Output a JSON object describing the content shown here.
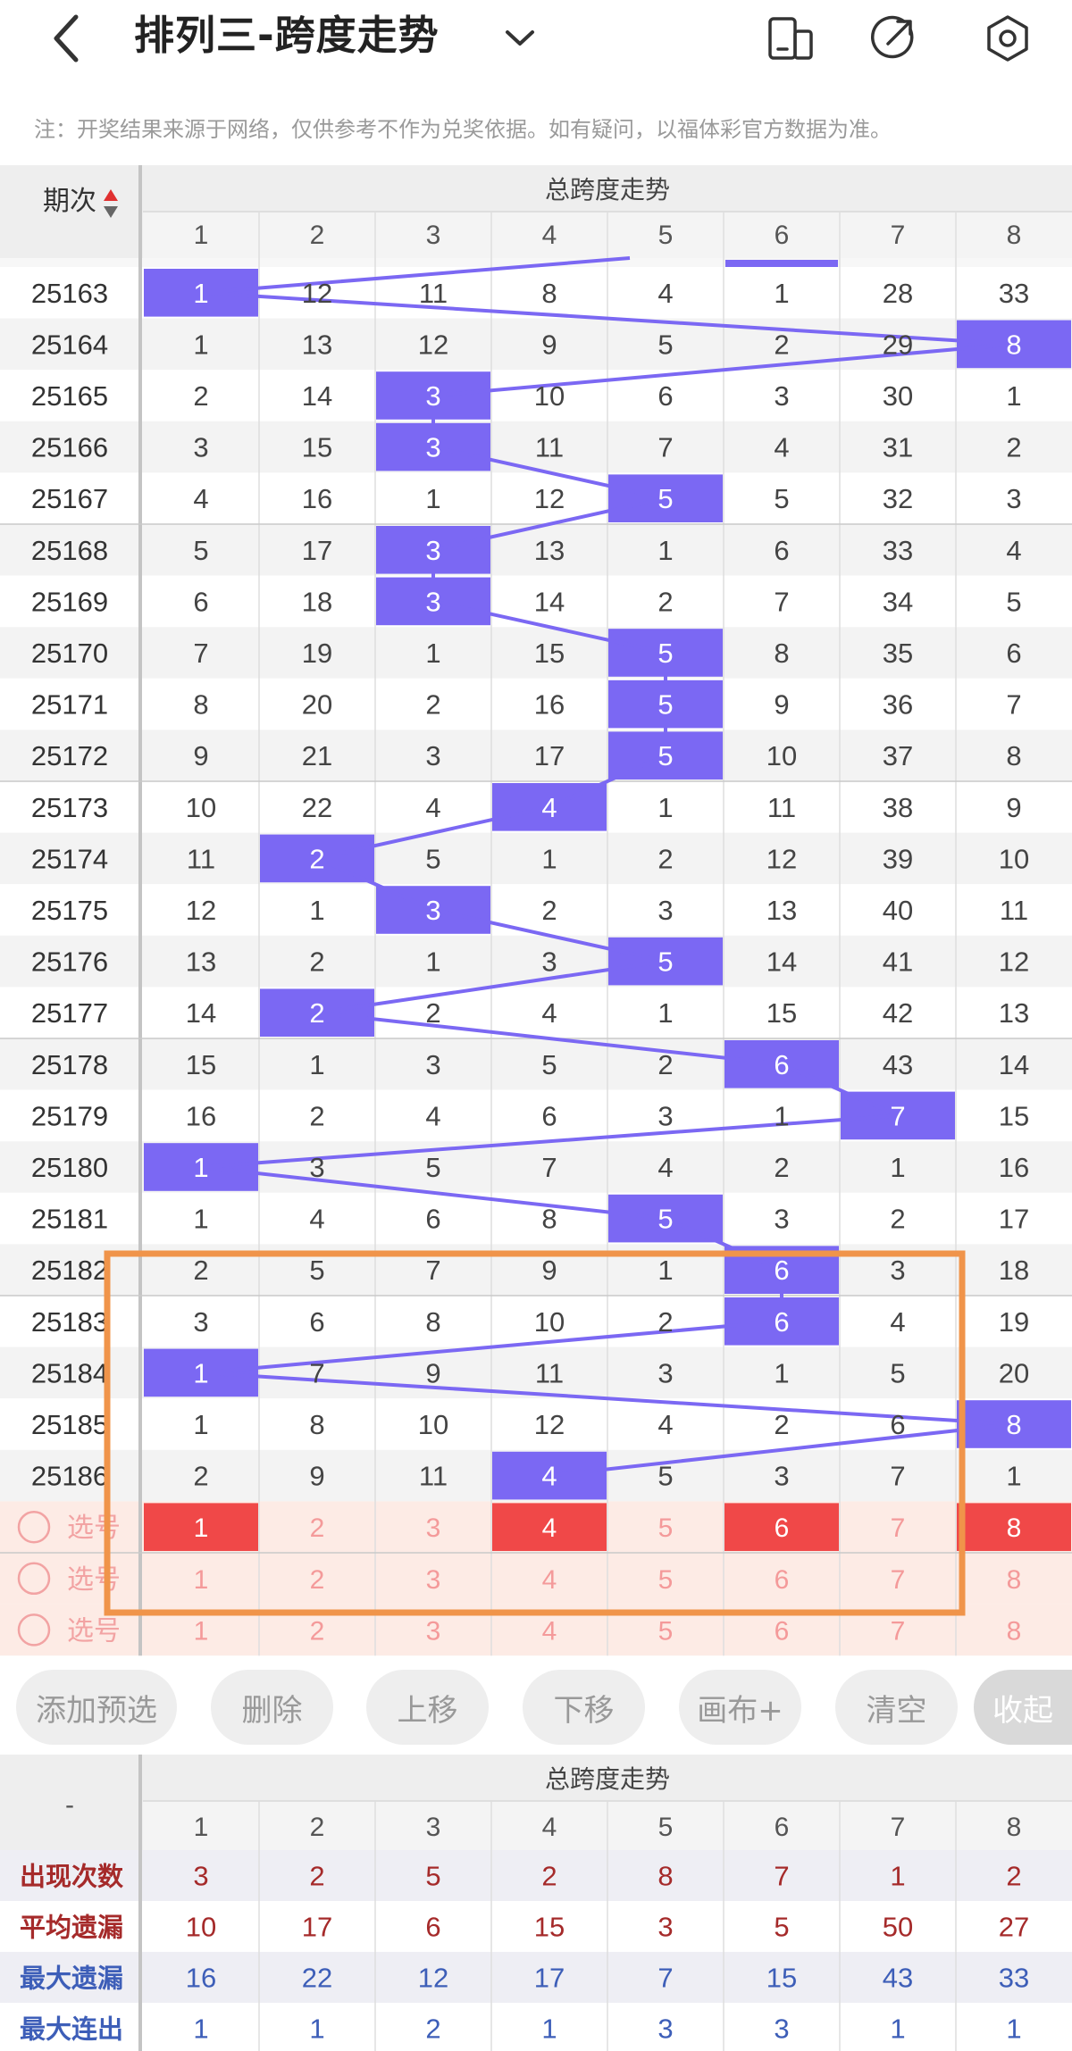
{
  "header": {
    "title": "排列三-跨度走势",
    "icons": [
      "back-arrow-icon",
      "chevron-down-icon",
      "phone-layout-icon",
      "share-icon",
      "settings-icon"
    ]
  },
  "notice": "注：开奖结果来源于网络，仅供参考不作为兑奖依据。如有疑问，以福体彩官方数据为准。",
  "table": {
    "period_header": "期次",
    "group_header": "总跨度走势",
    "columns": [
      "1",
      "2",
      "3",
      "4",
      "5",
      "6",
      "7",
      "8"
    ],
    "rows": [
      {
        "period": "25163",
        "values": [
          "1",
          "12",
          "11",
          "8",
          "4",
          "1",
          "28",
          "33"
        ],
        "hit": 0
      },
      {
        "period": "25164",
        "values": [
          "1",
          "13",
          "12",
          "9",
          "5",
          "2",
          "29",
          "8"
        ],
        "hit": 7
      },
      {
        "period": "25165",
        "values": [
          "2",
          "14",
          "3",
          "10",
          "6",
          "3",
          "30",
          "1"
        ],
        "hit": 2
      },
      {
        "period": "25166",
        "values": [
          "3",
          "15",
          "3",
          "11",
          "7",
          "4",
          "31",
          "2"
        ],
        "hit": 2
      },
      {
        "period": "25167",
        "values": [
          "4",
          "16",
          "1",
          "12",
          "5",
          "5",
          "32",
          "3"
        ],
        "hit": 4
      },
      {
        "period": "25168",
        "values": [
          "5",
          "17",
          "3",
          "13",
          "1",
          "6",
          "33",
          "4"
        ],
        "hit": 2
      },
      {
        "period": "25169",
        "values": [
          "6",
          "18",
          "3",
          "14",
          "2",
          "7",
          "34",
          "5"
        ],
        "hit": 2
      },
      {
        "period": "25170",
        "values": [
          "7",
          "19",
          "1",
          "15",
          "5",
          "8",
          "35",
          "6"
        ],
        "hit": 4
      },
      {
        "period": "25171",
        "values": [
          "8",
          "20",
          "2",
          "16",
          "5",
          "9",
          "36",
          "7"
        ],
        "hit": 4
      },
      {
        "period": "25172",
        "values": [
          "9",
          "21",
          "3",
          "17",
          "5",
          "10",
          "37",
          "8"
        ],
        "hit": 4
      },
      {
        "period": "25173",
        "values": [
          "10",
          "22",
          "4",
          "4",
          "1",
          "11",
          "38",
          "9"
        ],
        "hit": 3
      },
      {
        "period": "25174",
        "values": [
          "11",
          "2",
          "5",
          "1",
          "2",
          "12",
          "39",
          "10"
        ],
        "hit": 1
      },
      {
        "period": "25175",
        "values": [
          "12",
          "1",
          "3",
          "2",
          "3",
          "13",
          "40",
          "11"
        ],
        "hit": 2
      },
      {
        "period": "25176",
        "values": [
          "13",
          "2",
          "1",
          "3",
          "5",
          "14",
          "41",
          "12"
        ],
        "hit": 4
      },
      {
        "period": "25177",
        "values": [
          "14",
          "2",
          "2",
          "4",
          "1",
          "15",
          "42",
          "13"
        ],
        "hit": 1
      },
      {
        "period": "25178",
        "values": [
          "15",
          "1",
          "3",
          "5",
          "2",
          "6",
          "43",
          "14"
        ],
        "hit": 5
      },
      {
        "period": "25179",
        "values": [
          "16",
          "2",
          "4",
          "6",
          "3",
          "1",
          "7",
          "15"
        ],
        "hit": 6
      },
      {
        "period": "25180",
        "values": [
          "1",
          "3",
          "5",
          "7",
          "4",
          "2",
          "1",
          "16"
        ],
        "hit": 0
      },
      {
        "period": "25181",
        "values": [
          "1",
          "4",
          "6",
          "8",
          "5",
          "3",
          "2",
          "17"
        ],
        "hit": 4
      },
      {
        "period": "25182",
        "values": [
          "2",
          "5",
          "7",
          "9",
          "1",
          "6",
          "3",
          "18"
        ],
        "hit": 5
      },
      {
        "period": "25183",
        "values": [
          "3",
          "6",
          "8",
          "10",
          "2",
          "6",
          "4",
          "19"
        ],
        "hit": 5
      },
      {
        "period": "25184",
        "values": [
          "1",
          "7",
          "9",
          "11",
          "3",
          "1",
          "5",
          "20"
        ],
        "hit": 0
      },
      {
        "period": "25185",
        "values": [
          "1",
          "8",
          "10",
          "12",
          "4",
          "2",
          "6",
          "8"
        ],
        "hit": 7
      },
      {
        "period": "25186",
        "values": [
          "2",
          "9",
          "11",
          "4",
          "5",
          "3",
          "7",
          "1"
        ],
        "hit": 3
      }
    ],
    "select_rows": [
      {
        "label": "选号",
        "selected": [
          0,
          3,
          5,
          7
        ]
      },
      {
        "label": "选号",
        "selected": []
      },
      {
        "label": "选号",
        "selected": []
      }
    ],
    "select_numbers": [
      "1",
      "2",
      "3",
      "4",
      "5",
      "6",
      "7",
      "8"
    ]
  },
  "colors": {
    "hit": "#7b68f3",
    "selected": "#f04848",
    "select_bg": "#fdebe5",
    "highlight_box": "#f0944a",
    "stat_red": "#a52a2a",
    "stat_blue": "#3d5eb8"
  },
  "panel_buttons": [
    "添加预选",
    "删除",
    "上移",
    "下移",
    "画布+",
    "清空",
    "收起"
  ],
  "stats": {
    "corner": "-",
    "group_header": "总跨度走势",
    "columns": [
      "1",
      "2",
      "3",
      "4",
      "5",
      "6",
      "7",
      "8"
    ],
    "rows": [
      {
        "label": "出现次数",
        "color": "red",
        "values": [
          "3",
          "2",
          "5",
          "2",
          "8",
          "7",
          "1",
          "2"
        ]
      },
      {
        "label": "平均遗漏",
        "color": "red",
        "values": [
          "10",
          "17",
          "6",
          "15",
          "3",
          "5",
          "50",
          "27"
        ]
      },
      {
        "label": "最大遗漏",
        "color": "blue",
        "values": [
          "16",
          "22",
          "12",
          "17",
          "7",
          "15",
          "43",
          "33"
        ]
      },
      {
        "label": "最大连出",
        "color": "blue",
        "values": [
          "1",
          "1",
          "2",
          "1",
          "3",
          "3",
          "1",
          "1"
        ]
      }
    ]
  }
}
